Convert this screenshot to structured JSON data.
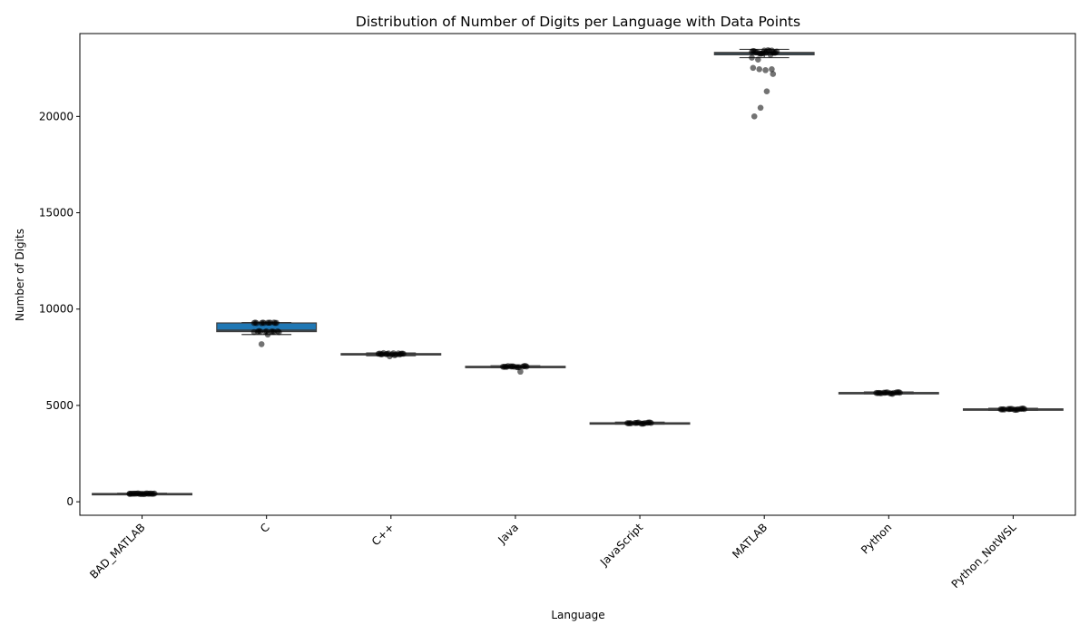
{
  "chart_data": {
    "type": "box",
    "title": "Distribution of Number of Digits per Language with Data Points",
    "xlabel": "Language",
    "ylabel": "Number of Digits",
    "ylim": [
      -700,
      24300
    ],
    "yticks": [
      0,
      5000,
      10000,
      15000,
      20000
    ],
    "grid": false,
    "box_color": "#1f77b4",
    "point_color": "#000000",
    "categories": [
      "BAD_MATLAB",
      "C",
      "C++",
      "Java",
      "JavaScript",
      "MATLAB",
      "Python",
      "Python_NotWSL"
    ],
    "boxes": [
      {
        "category": "BAD_MATLAB",
        "whisker_low": 390,
        "q1": 400,
        "median": 415,
        "q3": 430,
        "whisker_high": 440
      },
      {
        "category": "C",
        "whisker_low": 8680,
        "q1": 8830,
        "median": 8900,
        "q3": 9280,
        "whisker_high": 9300
      },
      {
        "category": "C++",
        "whisker_low": 7580,
        "q1": 7630,
        "median": 7660,
        "q3": 7690,
        "whisker_high": 7720
      },
      {
        "category": "Java",
        "whisker_low": 6960,
        "q1": 6990,
        "median": 7010,
        "q3": 7030,
        "whisker_high": 7060
      },
      {
        "category": "JavaScript",
        "whisker_low": 4030,
        "q1": 4060,
        "median": 4080,
        "q3": 4100,
        "whisker_high": 4130
      },
      {
        "category": "MATLAB",
        "whisker_low": 23050,
        "q1": 23200,
        "median": 23270,
        "q3": 23320,
        "whisker_high": 23480
      },
      {
        "category": "Python",
        "whisker_low": 5600,
        "q1": 5630,
        "median": 5650,
        "q3": 5670,
        "whisker_high": 5700
      },
      {
        "category": "Python_NotWSL",
        "whisker_low": 4750,
        "q1": 4780,
        "median": 4800,
        "q3": 4820,
        "whisker_high": 4850
      }
    ],
    "points": [
      {
        "category": "BAD_MATLAB",
        "values": [
          410,
          420,
          405,
          430,
          415,
          425,
          400,
          435,
          418,
          412,
          428,
          408,
          422,
          416,
          432,
          402,
          420,
          426,
          414,
          410,
          424,
          418
        ]
      },
      {
        "category": "C",
        "values": [
          9280,
          9300,
          9290,
          9270,
          9300,
          9280,
          9290,
          9300,
          9270,
          9285,
          9295,
          9280,
          8830,
          8850,
          8840,
          8820,
          8860,
          8800,
          8830,
          8850,
          8840,
          8810,
          8820,
          8680,
          8180
        ]
      },
      {
        "category": "C++",
        "values": [
          7680,
          7700,
          7650,
          7660,
          7690,
          7640,
          7710,
          7670,
          7650,
          7680,
          7600,
          7700,
          7660,
          7690,
          7640,
          7550,
          7720,
          7680
        ]
      },
      {
        "category": "Java",
        "values": [
          7010,
          7020,
          6990,
          7030,
          7000,
          7040,
          6980,
          7020,
          7010,
          7050,
          6990,
          7030,
          7000,
          7020,
          6750,
          7010,
          7040
        ]
      },
      {
        "category": "JavaScript",
        "values": [
          4080,
          4100,
          4060,
          4090,
          4070,
          4110,
          4050,
          4090,
          4080,
          4120,
          4060,
          4100,
          4070,
          4090,
          4080,
          4110
        ]
      },
      {
        "category": "MATLAB",
        "values": [
          23350,
          23420,
          23300,
          23280,
          23400,
          23320,
          23360,
          23250,
          23380,
          23300,
          23440,
          23260,
          23340,
          23310,
          23400,
          23290,
          23330,
          23370,
          23200,
          23420,
          22950,
          23050,
          22450,
          22400,
          22450,
          22520,
          22200,
          21300,
          20450,
          20000
        ]
      },
      {
        "category": "Python",
        "values": [
          5650,
          5670,
          5630,
          5660,
          5640,
          5680,
          5620,
          5660,
          5650,
          5690,
          5600,
          5670,
          5640,
          5660,
          5650,
          5680,
          5630
        ]
      },
      {
        "category": "Python_NotWSL",
        "values": [
          4800,
          4820,
          4780,
          4810,
          4790,
          4830,
          4770,
          4810,
          4800,
          4840,
          4780,
          4820,
          4790,
          4810,
          4800,
          4820
        ]
      }
    ]
  }
}
